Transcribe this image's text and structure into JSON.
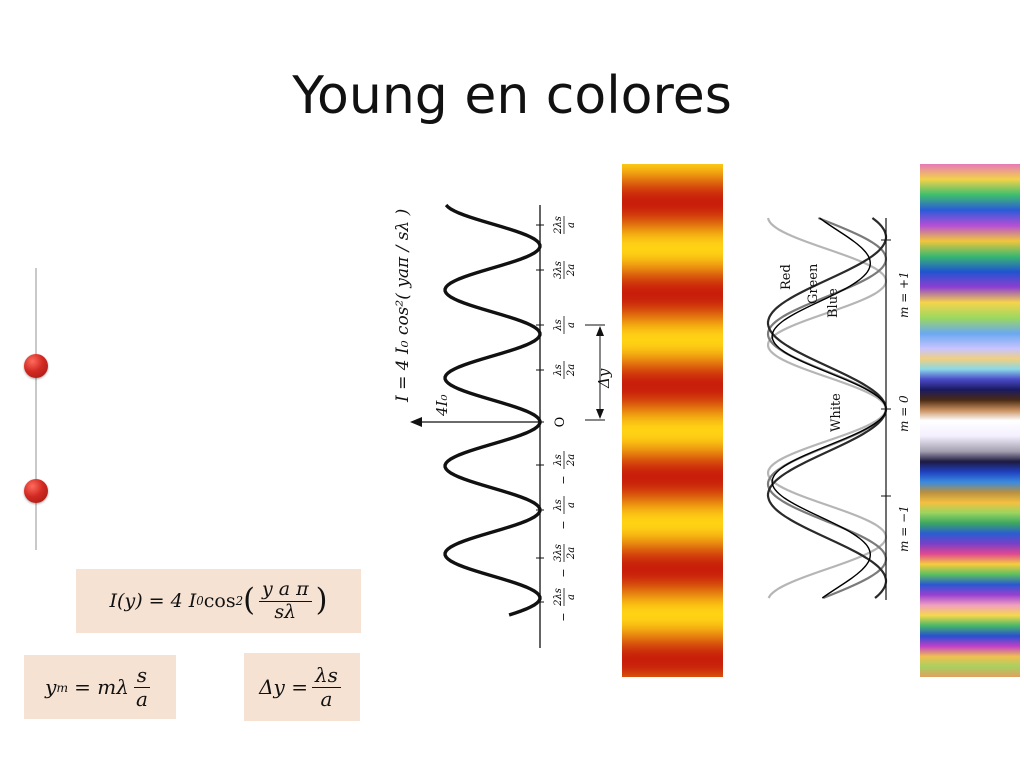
{
  "title": "Young en colores",
  "formulas": {
    "intensity": {
      "lhs": "I(y) = 4 I",
      "sub0": "0",
      "cos": "cos",
      "sup2": "2",
      "num": "y a π",
      "den": "sλ"
    },
    "fringe_position": {
      "lhs": "y",
      "sub_m": "m",
      "eq": "= mλ",
      "num": "s",
      "den": "a"
    },
    "fringe_spacing": {
      "lhs": "Δy =",
      "num": "λs",
      "den": "a"
    }
  },
  "figure_left": {
    "formula_label": "I = 4 I₀ cos²( yaπ / sλ )",
    "peak_label": "4I₀",
    "origin_label": "O",
    "spacing_label": "Δy",
    "ticks": [
      {
        "num": "2λs",
        "den": "a",
        "sign": ""
      },
      {
        "num": "3λs",
        "den": "2a",
        "sign": ""
      },
      {
        "num": "λs",
        "den": "a",
        "sign": ""
      },
      {
        "num": "λs",
        "den": "2a",
        "sign": ""
      },
      {
        "num": "O",
        "den": "",
        "sign": ""
      },
      {
        "num": "λs",
        "den": "2a",
        "sign": "−"
      },
      {
        "num": "λs",
        "den": "a",
        "sign": "−"
      },
      {
        "num": "3λs",
        "den": "2a",
        "sign": "−"
      },
      {
        "num": "2λs",
        "den": "a",
        "sign": "−"
      }
    ]
  },
  "figure_right": {
    "labels": [
      "Red",
      "Green",
      "Blue",
      "White"
    ],
    "orders": [
      "m = +1",
      "m = 0",
      "m = −1"
    ],
    "colors": {
      "red": "#222222",
      "green": "#555555",
      "blue": "#999999",
      "white": "#000000"
    }
  }
}
